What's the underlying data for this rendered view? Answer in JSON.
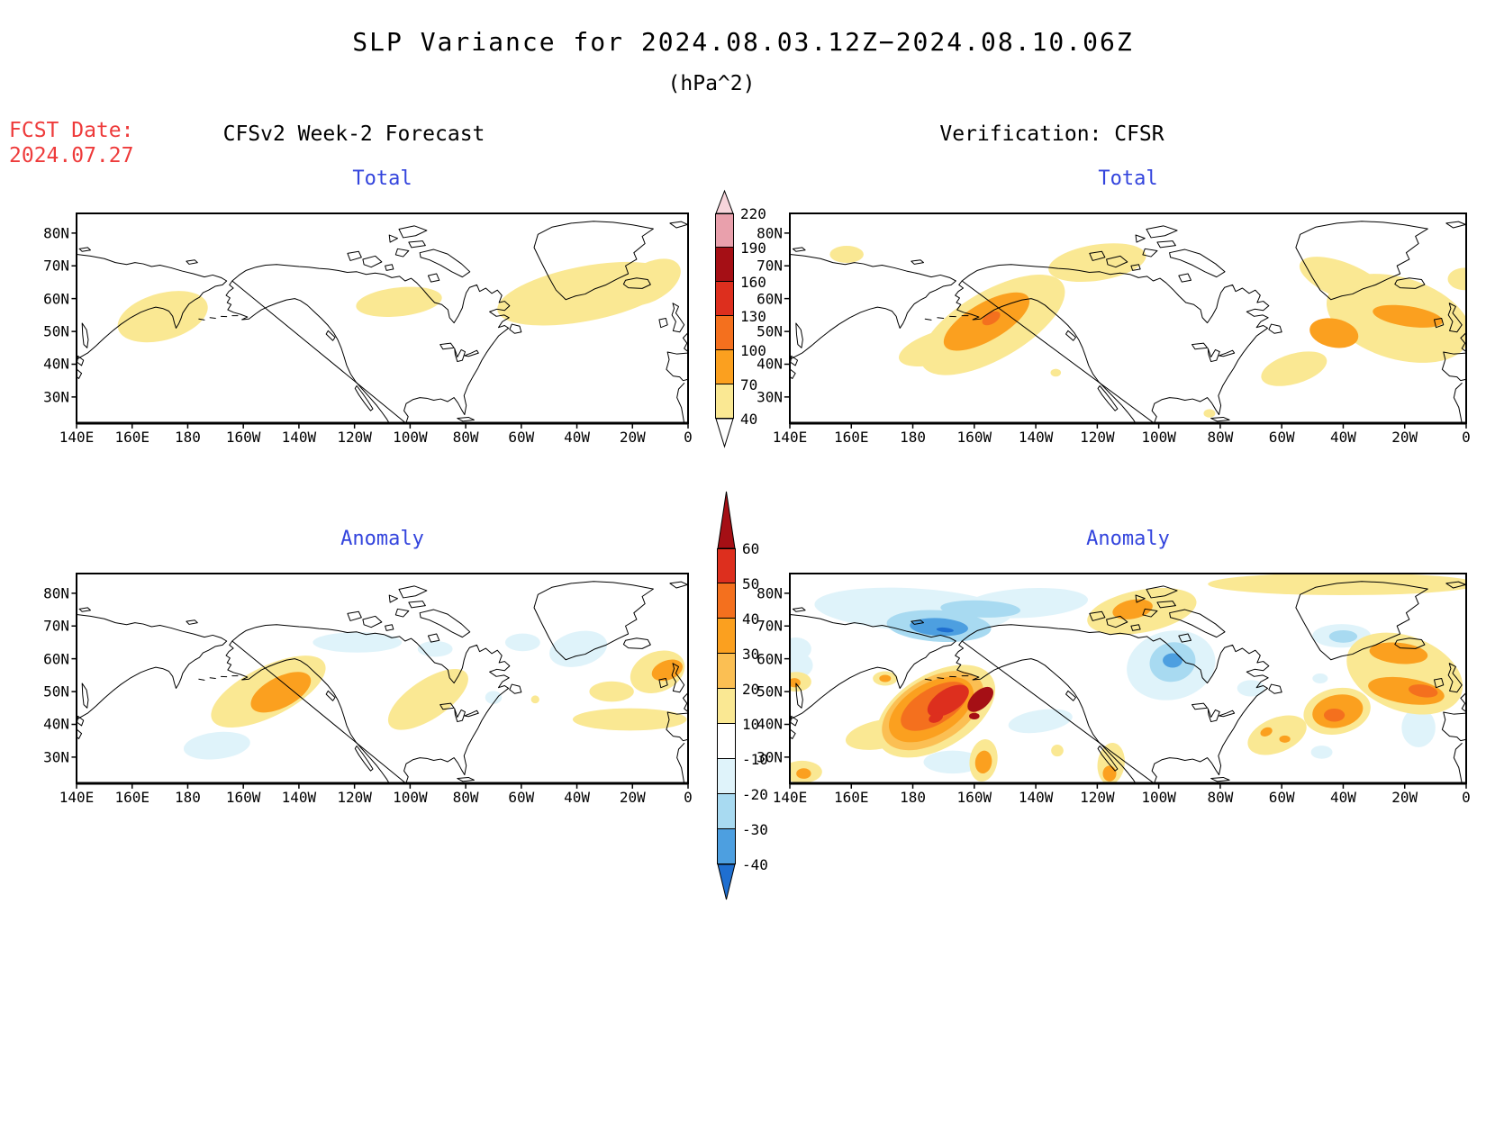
{
  "title": {
    "line1": "SLP Variance for 2024.08.03.12Z−2024.08.10.06Z",
    "line2": "(hPa^2)"
  },
  "fcst": {
    "label": "FCST Date:",
    "date": "2024.07.27"
  },
  "headers": {
    "left": "CFSv2 Week-2 Forecast",
    "right": "Verification: CFSR"
  },
  "panels": [
    {
      "id": "forecast-total",
      "title": "Total"
    },
    {
      "id": "verification-total",
      "title": "Total"
    },
    {
      "id": "forecast-anomaly",
      "title": "Anomaly"
    },
    {
      "id": "verification-anomaly",
      "title": "Anomaly"
    }
  ],
  "axes": {
    "lat_ticks": [
      "80N",
      "70N",
      "60N",
      "50N",
      "40N",
      "30N"
    ],
    "lon_ticks": [
      "140E",
      "160E",
      "180",
      "160W",
      "140W",
      "120W",
      "100W",
      "80W",
      "60W",
      "40W",
      "20W",
      "0"
    ],
    "lat_range_deg": [
      22,
      86
    ],
    "lon_range": "140E eastward through 180 to 0"
  },
  "colorbars": {
    "total_bar": {
      "name": "Total SLP variance scale (hPa^2)",
      "ticks": [
        "220",
        "190",
        "160",
        "130",
        "100",
        "70",
        "40"
      ],
      "blocks": [
        "#E9A0AC",
        "#A50F15",
        "#DD2F1E",
        "#F4701E",
        "#FBA01F",
        "#FAE893"
      ],
      "tip_top_color": "#F7D5DB",
      "tip_bottom_color": "#FFFFFF"
    },
    "anomaly_bar": {
      "name": "SLP variance anomaly scale (hPa^2)",
      "ticks": [
        "60",
        "50",
        "40",
        "30",
        "20",
        "10",
        "-10",
        "-20",
        "-30",
        "-40"
      ],
      "blocks": [
        "#DD2F1E",
        "#F4701E",
        "#FBA01F",
        "#FBBF53",
        "#FAE893",
        "#FFFFFF",
        "#DFF3FA",
        "#A8DAF1",
        "#4D9FE0"
      ],
      "tip_top_color": "#A50F15",
      "tip_bottom_color": "#1F6FD0"
    }
  },
  "palette": {
    "panel_title_blue": "#3344DD",
    "fcst_red": "#EE3B3B",
    "yellow_40_or_10": "#FAE893",
    "gold_20": "#FBBF53",
    "orange_70_or_30": "#FBA01F",
    "deep_orange_100_or_40": "#F4701E",
    "red_130_or_50": "#DD2F1E",
    "dark_red_160_or_60": "#A50F15",
    "pink_190": "#E9A0AC",
    "light_pink_220": "#F7D5DB",
    "pale_cyan_m10": "#DFF3FA",
    "light_blue_m20": "#A8DAF1",
    "blue_m30": "#4D9FE0",
    "dark_blue_m40": "#1F6FD0"
  },
  "chart_data": {
    "type": "heatmap",
    "subtype": "filled-contour lat/lon maps, 2x2 grid",
    "projection": "cylindrical equidistant, 140E eastward to 0 longitude, ~22N to ~86N latitude",
    "maps": [
      {
        "name": "CFSv2 Week-2 Forecast — Total",
        "units": "hPa^2",
        "contour_levels": [
          40,
          70,
          100,
          130,
          160,
          190,
          220
        ],
        "regions": [
          {
            "level": "40-70",
            "area": "Bering Sea / NW Pacific, ~52-62N, 170E-165W"
          },
          {
            "level": "40-70",
            "area": "Hudson Bay region, ~55-63N, 105W-80W"
          },
          {
            "level": "40-70",
            "area": "North Atlantic band, ~52-69N, 60W-0"
          }
        ]
      },
      {
        "name": "Verification: CFSR — Total",
        "units": "hPa^2",
        "contour_levels": [
          40,
          70,
          100,
          130,
          160,
          190,
          220
        ],
        "regions": [
          {
            "level": "40-70",
            "area": "small spot ~78N, 175E"
          },
          {
            "level": "70-100 with 100-130 core",
            "area": "Bering Sea / Aleutians, ~48-62N, 165E-155W"
          },
          {
            "level": "40-70",
            "area": "Canadian Arctic islands, ~74-80N, 115W-90W"
          },
          {
            "level": "40-70",
            "area": "Gulf of St Lawrence / Nova Scotia, ~46-52N"
          },
          {
            "level": "40-70 with 70-100 cores",
            "area": "North Atlantic, ~48-68N, 50W-0; cores SE of Greenland (~55N 40W) and near Iceland-Scotland (~60N 15W-0)"
          }
        ]
      },
      {
        "name": "CFSv2 Week-2 Forecast — Anomaly",
        "units": "hPa^2",
        "contour_levels": [
          -40,
          -30,
          -20,
          -10,
          10,
          20,
          30,
          40,
          50,
          60
        ],
        "regions": [
          {
            "level": "+10 to +30",
            "area": "Kamchatka / W Bering Sea, ~53-63N, 150E-178E (orange core +20-30)"
          },
          {
            "level": "-10 to -20",
            "area": "N Pacific ~43-48N, 165E-175W; Beaufort Sea ~72-76N; C Greenland ~70-76N"
          },
          {
            "level": "+10 to +20",
            "area": "S Hudson Bay ~52-58N"
          },
          {
            "level": "+10 to +30",
            "area": "NE Atlantic: N of Iceland toward Norway (orange core ~66N 5W-0), S of Iceland ~60N, band ~52-57N 35W-0"
          }
        ]
      },
      {
        "name": "Verification: CFSR — Anomaly",
        "units": "hPa^2",
        "contour_levels": [
          -40,
          -30,
          -20,
          -10,
          10,
          20,
          30,
          40,
          50,
          60
        ],
        "regions": [
          {
            "level": "+40 to >60",
            "area": "Gulf of Alaska / E Bering, ~50-60N, 178W-150W, dark-red core >60 near Alaska Peninsula, secondary red core ~52N 175W"
          },
          {
            "level": "+10 to +40",
            "area": "tail SW along 50N to 160E and finger S to ~40N 155W"
          },
          {
            "level": "-20 to -40",
            "area": "Arctic Ocean ~73-80N, 175E-130W (blue core ~75N 165W)"
          },
          {
            "level": "-20 to -30",
            "area": "Hudson Bay / Foxe Basin ~55-68N"
          },
          {
            "level": "+10 to +30",
            "area": "Canadian Arctic islands ~74-80N (orange core) and band along ~83N to NE Greenland"
          },
          {
            "level": "+10 to +40",
            "area": "Gulf of St Lawrence ~48-52N (orange spots)"
          },
          {
            "level": "+30 to +50",
            "area": "Atlantic SE of Greenland ~53-58N 45W-35W (deep orange core)"
          },
          {
            "level": "+30 to +50",
            "area": "NE Atlantic near Iceland: lobe N of Iceland ~67N and lobe Iceland-Scotland ~60-63N 15W-0 with deep orange core"
          },
          {
            "level": "+10 to +30",
            "area": "US East Coast ~33-40N 80W-75W; spots along 140E-150E near left edge"
          },
          {
            "level": "-10 to -20",
            "area": "scattered: mid-Pacific ~50N 130W, S of red blob ~43N, W of UK ~53N 12W, C Greenland top ~76N 40W"
          }
        ]
      }
    ]
  }
}
